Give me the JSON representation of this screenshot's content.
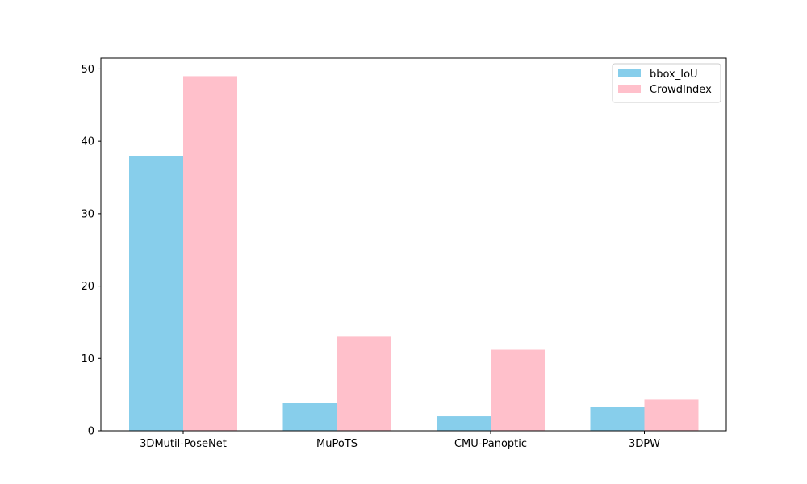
{
  "chart_data": {
    "type": "bar",
    "title": "",
    "xlabel": "",
    "ylabel": "",
    "categories": [
      "3DMutil-PoseNet",
      "MuPoTS",
      "CMU-Panoptic",
      "3DPW"
    ],
    "series": [
      {
        "name": "bbox_IoU",
        "values": [
          38.0,
          3.8,
          2.0,
          3.3
        ],
        "color": "#87ceeb"
      },
      {
        "name": "CrowdIndex",
        "values": [
          49.0,
          13.0,
          11.2,
          4.3
        ],
        "color": "#ffc0cb"
      }
    ],
    "ylim": [
      0,
      51.5
    ],
    "yticks": [
      0,
      10,
      20,
      30,
      40,
      50
    ],
    "legend_position": "top-right",
    "grid": false
  }
}
